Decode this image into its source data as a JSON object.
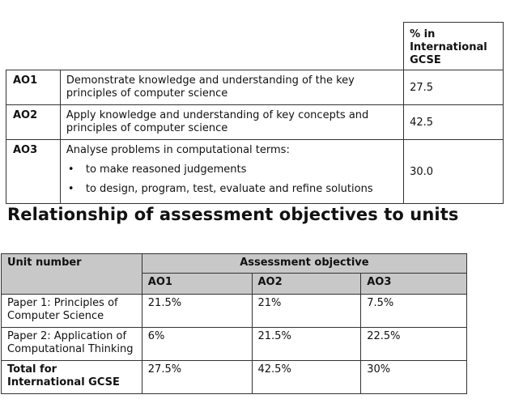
{
  "objectives_table": {
    "pct_header": "% in International GCSE",
    "rows": [
      {
        "code": "AO1",
        "description": "Demonstrate knowledge and understanding of the key principles of computer science",
        "percent": "27.5"
      },
      {
        "code": "AO2",
        "description": "Apply knowledge and understanding of key concepts and principles of computer science",
        "percent": "42.5"
      },
      {
        "code": "AO3",
        "description": "Analyse problems in computational terms:",
        "bullets": [
          "to make reasoned judgements",
          "to design, program, test, evaluate and refine solutions"
        ],
        "percent": "30.0"
      }
    ]
  },
  "section_heading": "Relationship of assessment objectives to units",
  "units_table": {
    "unit_header": "Unit number",
    "ao_header": "Assessment objective",
    "ao_columns": [
      "AO1",
      "AO2",
      "AO3"
    ],
    "rows": [
      {
        "unit": "Paper 1: Principles of Computer Science",
        "values": [
          "21.5%",
          "21%",
          "7.5%"
        ]
      },
      {
        "unit": "Paper 2: Application of Computational Thinking",
        "values": [
          "6%",
          "21.5%",
          "22.5%"
        ]
      },
      {
        "unit": "Total for International GCSE",
        "values": [
          "27.5%",
          "42.5%",
          "30%"
        ]
      }
    ]
  }
}
